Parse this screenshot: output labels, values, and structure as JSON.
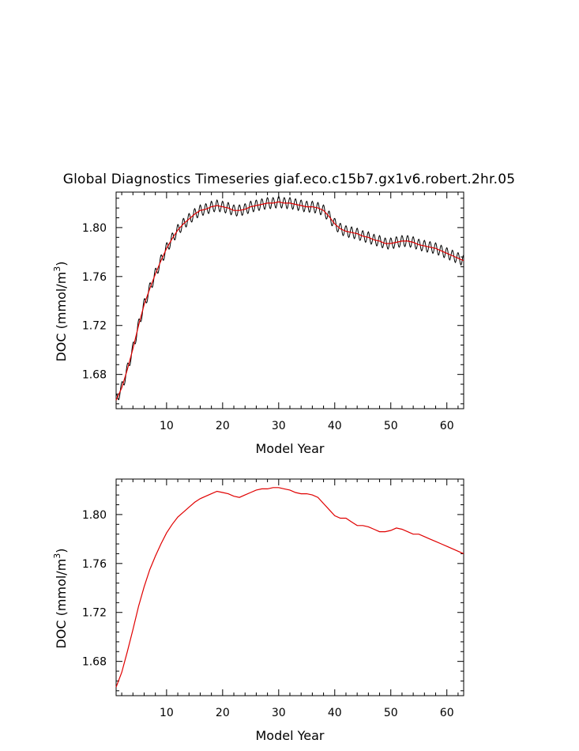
{
  "title": "Global Diagnostics Timeseries giaf.eco.c15b7.gx1v6.robert.2hr.05",
  "colors": {
    "monthly": "#000000",
    "annual": "#e00000"
  },
  "chart_data": [
    {
      "type": "line",
      "xlabel": "Model Year",
      "ylabel": "DOC (mmol/m",
      "ylabel_sup": "3",
      "ylabel_close": ")",
      "xlim": [
        1,
        63
      ],
      "ylim": [
        1.652,
        1.829
      ],
      "xticks": [
        10,
        20,
        30,
        40,
        50,
        60
      ],
      "xtick_labels": [
        "10",
        "20",
        "30",
        "40",
        "50",
        "60"
      ],
      "yticks": [
        1.68,
        1.72,
        1.76,
        1.8
      ],
      "ytick_labels": [
        "1.68",
        "1.72",
        "1.76",
        "1.80"
      ],
      "grid": false,
      "legend": "none",
      "series": [
        {
          "style": "monthly-seasonal-cycle",
          "color": "#000000",
          "x": [
            1,
            2,
            3,
            4,
            5,
            6,
            7,
            8,
            9,
            10,
            11,
            12,
            13,
            14,
            15,
            16,
            17,
            18,
            19,
            20,
            21,
            22,
            23,
            24,
            25,
            26,
            27,
            28,
            29,
            30,
            31,
            32,
            33,
            34,
            35,
            36,
            37,
            38,
            39,
            40,
            41,
            42,
            43,
            44,
            45,
            46,
            47,
            48,
            49,
            50,
            51,
            52,
            53,
            54,
            55,
            56,
            57,
            58,
            59,
            60,
            61,
            62,
            63
          ],
          "annual_mean": [
            1.659,
            1.669,
            1.684,
            1.701,
            1.72,
            1.737,
            1.75,
            1.762,
            1.773,
            1.783,
            1.791,
            1.798,
            1.803,
            1.807,
            1.811,
            1.814,
            1.815,
            1.817,
            1.818,
            1.817,
            1.816,
            1.814,
            1.814,
            1.815,
            1.817,
            1.818,
            1.819,
            1.82,
            1.82,
            1.821,
            1.82,
            1.82,
            1.819,
            1.818,
            1.817,
            1.817,
            1.816,
            1.814,
            1.809,
            1.803,
            1.799,
            1.797,
            1.796,
            1.795,
            1.793,
            1.792,
            1.79,
            1.789,
            1.787,
            1.787,
            1.788,
            1.789,
            1.789,
            1.788,
            1.786,
            1.785,
            1.784,
            1.783,
            1.781,
            1.779,
            1.777,
            1.775,
            1.773
          ],
          "seasonal_amplitude": 0.0045
        },
        {
          "style": "annual-mean",
          "color": "#e00000",
          "x": [
            1,
            2,
            3,
            4,
            5,
            6,
            7,
            8,
            9,
            10,
            11,
            12,
            13,
            14,
            15,
            16,
            17,
            18,
            19,
            20,
            21,
            22,
            23,
            24,
            25,
            26,
            27,
            28,
            29,
            30,
            31,
            32,
            33,
            34,
            35,
            36,
            37,
            38,
            39,
            40,
            41,
            42,
            43,
            44,
            45,
            46,
            47,
            48,
            49,
            50,
            51,
            52,
            53,
            54,
            55,
            56,
            57,
            58,
            59,
            60,
            61,
            62,
            63
          ],
          "values": [
            1.659,
            1.669,
            1.684,
            1.701,
            1.72,
            1.737,
            1.75,
            1.762,
            1.773,
            1.783,
            1.791,
            1.798,
            1.803,
            1.807,
            1.811,
            1.814,
            1.815,
            1.817,
            1.818,
            1.817,
            1.816,
            1.814,
            1.814,
            1.815,
            1.817,
            1.818,
            1.819,
            1.82,
            1.82,
            1.821,
            1.82,
            1.82,
            1.819,
            1.818,
            1.817,
            1.817,
            1.816,
            1.814,
            1.809,
            1.803,
            1.799,
            1.797,
            1.796,
            1.795,
            1.793,
            1.792,
            1.79,
            1.789,
            1.787,
            1.787,
            1.788,
            1.789,
            1.789,
            1.788,
            1.786,
            1.785,
            1.784,
            1.783,
            1.781,
            1.779,
            1.777,
            1.775,
            1.773
          ]
        }
      ]
    },
    {
      "type": "line",
      "xlabel": "Model Year",
      "ylabel": "DOC (mmol/m",
      "ylabel_sup": "3",
      "ylabel_close": ")",
      "xlim": [
        1,
        63
      ],
      "ylim": [
        1.652,
        1.829
      ],
      "xticks": [
        10,
        20,
        30,
        40,
        50,
        60
      ],
      "xtick_labels": [
        "10",
        "20",
        "30",
        "40",
        "50",
        "60"
      ],
      "yticks": [
        1.68,
        1.72,
        1.76,
        1.8
      ],
      "ytick_labels": [
        "1.68",
        "1.72",
        "1.76",
        "1.80"
      ],
      "grid": false,
      "legend": "none",
      "series": [
        {
          "style": "annual-mean",
          "color": "#e00000",
          "x": [
            1,
            2,
            3,
            4,
            5,
            6,
            7,
            8,
            9,
            10,
            11,
            12,
            13,
            14,
            15,
            16,
            17,
            18,
            19,
            20,
            21,
            22,
            23,
            24,
            25,
            26,
            27,
            28,
            29,
            30,
            31,
            32,
            33,
            34,
            35,
            36,
            37,
            38,
            39,
            40,
            41,
            42,
            43,
            44,
            45,
            46,
            47,
            48,
            49,
            50,
            51,
            52,
            53,
            54,
            55,
            56,
            57,
            58,
            59,
            60,
            61,
            62,
            63
          ],
          "values": [
            1.659,
            1.671,
            1.688,
            1.706,
            1.725,
            1.741,
            1.755,
            1.766,
            1.776,
            1.785,
            1.792,
            1.798,
            1.802,
            1.806,
            1.81,
            1.813,
            1.815,
            1.817,
            1.819,
            1.818,
            1.817,
            1.815,
            1.814,
            1.816,
            1.818,
            1.82,
            1.821,
            1.821,
            1.822,
            1.822,
            1.821,
            1.82,
            1.818,
            1.817,
            1.817,
            1.816,
            1.814,
            1.809,
            1.804,
            1.799,
            1.797,
            1.797,
            1.794,
            1.791,
            1.791,
            1.79,
            1.788,
            1.786,
            1.786,
            1.787,
            1.789,
            1.788,
            1.786,
            1.784,
            1.784,
            1.782,
            1.78,
            1.778,
            1.776,
            1.774,
            1.772,
            1.77,
            1.768
          ]
        }
      ]
    }
  ]
}
